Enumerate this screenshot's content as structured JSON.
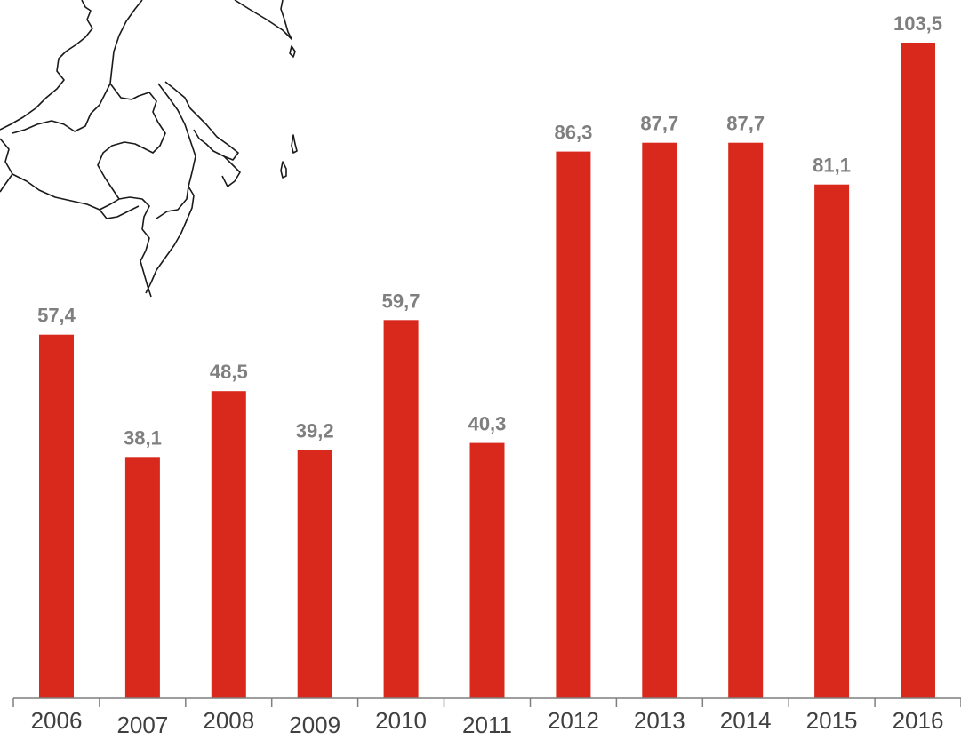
{
  "chart_data": {
    "type": "bar",
    "categories": [
      "2006",
      "2007",
      "2008",
      "2009",
      "2010",
      "2011",
      "2012",
      "2013",
      "2014",
      "2015",
      "2016"
    ],
    "values": [
      57.4,
      38.1,
      48.5,
      39.2,
      59.7,
      40.3,
      86.3,
      87.7,
      87.7,
      81.1,
      103.5
    ],
    "value_labels": [
      "57,4",
      "38,1",
      "48,5",
      "39,2",
      "59,7",
      "40,3",
      "86,3",
      "87,7",
      "87,7",
      "81,1",
      "103,5"
    ],
    "title": "",
    "xlabel": "",
    "ylabel": "",
    "ylim": [
      0,
      105
    ],
    "grid": false,
    "legend": "none",
    "colors": {
      "bar": "#D9291C",
      "value_label": "#7F7F7F",
      "tick_label": "#404040",
      "axis": "#7F7F7F",
      "map_outline": "#1a1a1a"
    }
  },
  "decoration": {
    "icon": "coastline-map-icon"
  }
}
